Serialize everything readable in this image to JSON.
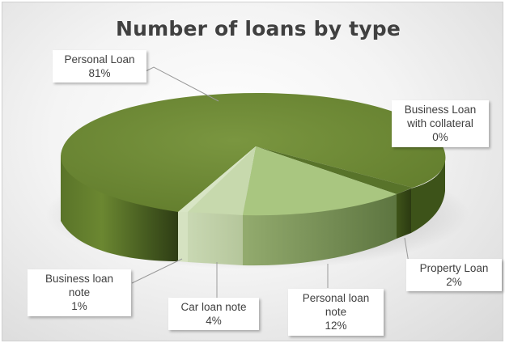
{
  "chart_data": {
    "type": "pie",
    "title": "Number of loans by type",
    "slices": [
      {
        "label": "Personal Loan",
        "value": 81,
        "value_label": "81%",
        "color": "#6f8a35"
      },
      {
        "label": "Business Loan with collateral",
        "value": 0,
        "value_label": "0%",
        "color": "#6f8a35"
      },
      {
        "label": "Property Loan",
        "value": 2,
        "value_label": "2%",
        "color": "#4f6a25"
      },
      {
        "label": "Personal loan note",
        "value": 12,
        "value_label": "12%",
        "color": "#a6c47e"
      },
      {
        "label": "Car loan note",
        "value": 4,
        "value_label": "4%",
        "color": "#c6d8ac"
      },
      {
        "label": "Business loan note",
        "value": 1,
        "value_label": "1%",
        "color": "#d4e2c0"
      }
    ]
  },
  "labels": {
    "personal_loan": {
      "name": "Personal Loan",
      "pct": "81%"
    },
    "business_collateral": {
      "line1": "Business Loan",
      "line2": "with collateral",
      "pct": "0%"
    },
    "property_loan": {
      "name": "Property Loan",
      "pct": "2%"
    },
    "personal_note": {
      "line1": "Personal loan",
      "line2": "note",
      "pct": "12%"
    },
    "car_note": {
      "name": "Car loan note",
      "pct": "4%"
    },
    "business_note": {
      "line1": "Business loan",
      "line2": "note",
      "pct": "1%"
    }
  }
}
